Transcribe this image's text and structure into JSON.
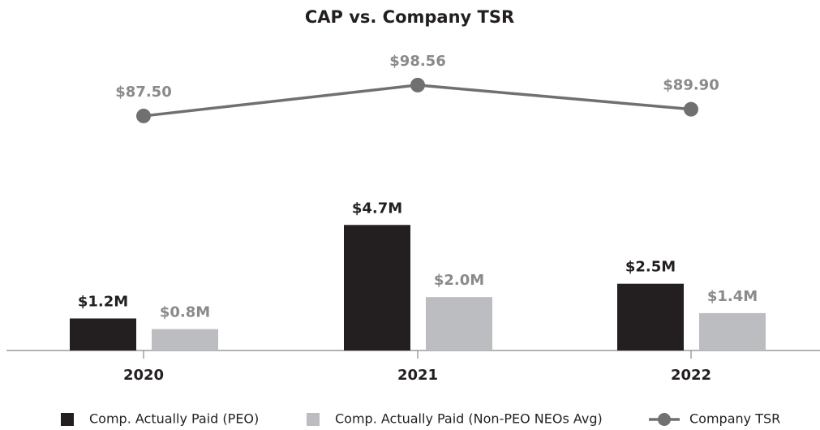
{
  "chart_data": {
    "type": "bar",
    "title": "CAP vs. Company TSR",
    "categories": [
      "2020",
      "2021",
      "2022"
    ],
    "series": [
      {
        "name": "Comp. Actually Paid (PEO)",
        "color": "#231f20",
        "values": [
          1.2,
          4.7,
          2.5
        ],
        "value_labels": [
          "$1.2M",
          "$4.7M",
          "$2.5M"
        ]
      },
      {
        "name": "Comp. Actually Paid (Non-PEO NEOs Avg)",
        "color": "#bcbdc0",
        "values": [
          0.8,
          2.0,
          1.4
        ],
        "value_labels": [
          "$0.8M",
          "$2.0M",
          "$1.4M"
        ]
      },
      {
        "name": "Company TSR",
        "type": "line",
        "axis": "y2",
        "color": "#707070",
        "values": [
          87.5,
          98.56,
          89.9
        ],
        "value_labels": [
          "$87.50",
          "$98.56",
          "$89.90"
        ]
      }
    ],
    "ylim": [
      0,
      11.3
    ],
    "y2lim": [
      3.5,
      111.6
    ],
    "legend": "bottom"
  }
}
